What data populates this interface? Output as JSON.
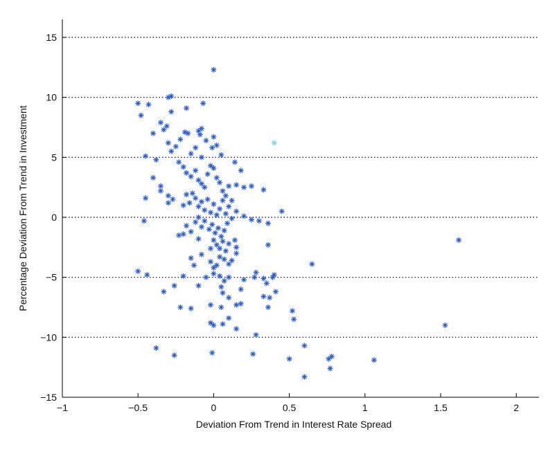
{
  "chart_data": {
    "type": "scatter",
    "xlabel": "Deviation From Trend in Interest Rate Spread",
    "ylabel": "Percentage Deviation From Trend in Investment",
    "xlim": [
      -1,
      2.15
    ],
    "ylim": [
      -15,
      16.5
    ],
    "xticks": [
      -1,
      -0.5,
      0,
      0.5,
      1,
      1.5,
      2
    ],
    "xtick_labels": [
      "−1",
      "−0.5",
      "0",
      "0.5",
      "1",
      "1.5",
      "2"
    ],
    "yticks": [
      -15,
      -10,
      -5,
      0,
      5,
      10,
      15
    ],
    "ytick_labels": [
      "−15",
      "−10",
      "−5",
      "0",
      "5",
      "10",
      "15"
    ],
    "grid": {
      "horizontal_dotted_at": [
        -10,
        -5,
        0,
        5,
        10,
        15
      ]
    },
    "marker": "asterisk",
    "colors": {
      "points": "#2a5bd7",
      "outlier_light": "#7fd3e6"
    },
    "points": [
      [
        0.0,
        12.3
      ],
      [
        -0.28,
        10.1
      ],
      [
        -0.3,
        10.0
      ],
      [
        -0.5,
        9.5
      ],
      [
        -0.43,
        9.4
      ],
      [
        -0.07,
        9.5
      ],
      [
        -0.18,
        9.1
      ],
      [
        -0.28,
        8.8
      ],
      [
        -0.48,
        8.5
      ],
      [
        -0.35,
        7.9
      ],
      [
        -0.33,
        7.3
      ],
      [
        -0.31,
        7.6
      ],
      [
        -0.4,
        7.0
      ],
      [
        -0.19,
        7.1
      ],
      [
        -0.17,
        7.0
      ],
      [
        -0.1,
        7.2
      ],
      [
        -0.08,
        7.4
      ],
      [
        -0.09,
        6.9
      ],
      [
        0.0,
        6.7
      ],
      [
        -0.22,
        6.5
      ],
      [
        -0.3,
        6.2
      ],
      [
        0.02,
        6.0
      ],
      [
        0.4,
        6.2
      ],
      [
        -0.25,
        5.9
      ],
      [
        -0.05,
        6.4
      ],
      [
        -0.01,
        5.8
      ],
      [
        -0.38,
        4.8
      ],
      [
        -0.45,
        5.1
      ],
      [
        -0.28,
        5.5
      ],
      [
        -0.15,
        5.3
      ],
      [
        -0.12,
        5.8
      ],
      [
        -0.08,
        5.0
      ],
      [
        0.05,
        5.2
      ],
      [
        0.14,
        4.6
      ],
      [
        -0.4,
        3.3
      ],
      [
        -0.35,
        2.6
      ],
      [
        -0.35,
        2.2
      ],
      [
        -0.3,
        1.8
      ],
      [
        -0.3,
        1.2
      ],
      [
        -0.27,
        1.5
      ],
      [
        -0.23,
        4.6
      ],
      [
        -0.2,
        4.2
      ],
      [
        -0.18,
        3.7
      ],
      [
        -0.15,
        3.4
      ],
      [
        -0.12,
        3.9
      ],
      [
        -0.1,
        3.1
      ],
      [
        -0.08,
        2.8
      ],
      [
        -0.06,
        2.5
      ],
      [
        -0.04,
        3.6
      ],
      [
        -0.02,
        4.3
      ],
      [
        0.0,
        4.1
      ],
      [
        0.02,
        3.3
      ],
      [
        0.04,
        2.9
      ],
      [
        0.06,
        2.2
      ],
      [
        0.08,
        1.8
      ],
      [
        0.1,
        2.6
      ],
      [
        0.12,
        1.4
      ],
      [
        0.15,
        2.7
      ],
      [
        0.18,
        3.9
      ],
      [
        0.2,
        2.5
      ],
      [
        0.25,
        2.6
      ],
      [
        0.33,
        2.3
      ],
      [
        -0.2,
        1.0
      ],
      [
        -0.18,
        1.9
      ],
      [
        -0.16,
        1.2
      ],
      [
        -0.14,
        2.0
      ],
      [
        -0.12,
        1.6
      ],
      [
        -0.1,
        0.9
      ],
      [
        -0.08,
        1.3
      ],
      [
        -0.06,
        0.6
      ],
      [
        -0.04,
        1.5
      ],
      [
        -0.02,
        0.4
      ],
      [
        0.0,
        1.1
      ],
      [
        0.02,
        0.2
      ],
      [
        0.04,
        0.7
      ],
      [
        0.06,
        1.4
      ],
      [
        0.08,
        0.3
      ],
      [
        0.1,
        0.9
      ],
      [
        0.12,
        -0.1
      ],
      [
        0.15,
        0.5
      ],
      [
        0.2,
        0.1
      ],
      [
        0.25,
        -0.2
      ],
      [
        0.3,
        -0.3
      ],
      [
        0.36,
        -0.5
      ],
      [
        0.45,
        0.5
      ],
      [
        -0.45,
        1.6
      ],
      [
        -0.46,
        -0.3
      ],
      [
        -0.1,
        0.0
      ],
      [
        -0.12,
        -0.4
      ],
      [
        -0.08,
        -0.8
      ],
      [
        -0.06,
        -0.3
      ],
      [
        -0.03,
        -1.0
      ],
      [
        -0.01,
        -0.6
      ],
      [
        0.01,
        -1.3
      ],
      [
        0.03,
        -0.9
      ],
      [
        0.05,
        -1.6
      ],
      [
        0.07,
        -1.1
      ],
      [
        0.09,
        -0.5
      ],
      [
        -0.15,
        -1.2
      ],
      [
        -0.18,
        -0.7
      ],
      [
        -0.23,
        -1.5
      ],
      [
        -0.2,
        -1.4
      ],
      [
        -0.1,
        -1.8
      ],
      [
        0.0,
        -1.9
      ],
      [
        0.02,
        -2.3
      ],
      [
        0.04,
        -2.6
      ],
      [
        0.06,
        -2.0
      ],
      [
        0.08,
        -2.8
      ],
      [
        -0.02,
        -2.6
      ],
      [
        0.1,
        -2.2
      ],
      [
        0.15,
        -2.5
      ],
      [
        0.14,
        -1.9
      ],
      [
        0.15,
        -3.0
      ],
      [
        0.36,
        -2.3
      ],
      [
        -0.15,
        -3.4
      ],
      [
        -0.08,
        -3.1
      ],
      [
        -0.02,
        -3.7
      ],
      [
        0.04,
        -3.3
      ],
      [
        0.07,
        -3.5
      ],
      [
        0.1,
        -3.9
      ],
      [
        0.12,
        -3.6
      ],
      [
        0.0,
        -4.2
      ],
      [
        0.02,
        -4.0
      ],
      [
        -0.13,
        -4.0
      ],
      [
        0.65,
        -3.9
      ],
      [
        -0.5,
        -4.5
      ],
      [
        -0.44,
        -4.8
      ],
      [
        -0.2,
        -4.9
      ],
      [
        -0.05,
        -5.0
      ],
      [
        0.0,
        -4.7
      ],
      [
        0.04,
        -4.9
      ],
      [
        0.07,
        -5.3
      ],
      [
        0.1,
        -5.0
      ],
      [
        0.2,
        -5.2
      ],
      [
        0.28,
        -4.6
      ],
      [
        0.33,
        -5.1
      ],
      [
        0.35,
        -5.5
      ],
      [
        0.39,
        -5.0
      ],
      [
        0.4,
        -4.8
      ],
      [
        0.27,
        -5.0
      ],
      [
        -0.26,
        -5.7
      ],
      [
        -0.1,
        -5.7
      ],
      [
        0.05,
        -5.8
      ],
      [
        0.06,
        -6.3
      ],
      [
        0.1,
        -6.7
      ],
      [
        0.18,
        -6.0
      ],
      [
        0.33,
        -6.6
      ],
      [
        0.37,
        -6.7
      ],
      [
        0.41,
        -6.2
      ],
      [
        -0.33,
        -6.2
      ],
      [
        -0.22,
        -7.5
      ],
      [
        -0.15,
        -7.6
      ],
      [
        -0.02,
        -7.3
      ],
      [
        0.05,
        -7.5
      ],
      [
        0.15,
        -7.3
      ],
      [
        0.18,
        -7.2
      ],
      [
        0.36,
        -7.5
      ],
      [
        0.52,
        -7.8
      ],
      [
        -0.02,
        -8.8
      ],
      [
        0.0,
        -9.0
      ],
      [
        0.06,
        -8.9
      ],
      [
        0.1,
        -8.4
      ],
      [
        0.15,
        -9.3
      ],
      [
        0.53,
        -8.5
      ],
      [
        1.53,
        -9.0
      ],
      [
        0.28,
        -9.8
      ],
      [
        -0.38,
        -10.9
      ],
      [
        -0.26,
        -11.5
      ],
      [
        -0.01,
        -11.3
      ],
      [
        0.26,
        -11.4
      ],
      [
        0.5,
        -11.8
      ],
      [
        0.6,
        -10.7
      ],
      [
        0.76,
        -11.8
      ],
      [
        0.78,
        -11.6
      ],
      [
        0.77,
        -12.6
      ],
      [
        1.06,
        -11.9
      ],
      [
        0.6,
        -13.3
      ],
      [
        1.62,
        -1.9
      ]
    ]
  }
}
